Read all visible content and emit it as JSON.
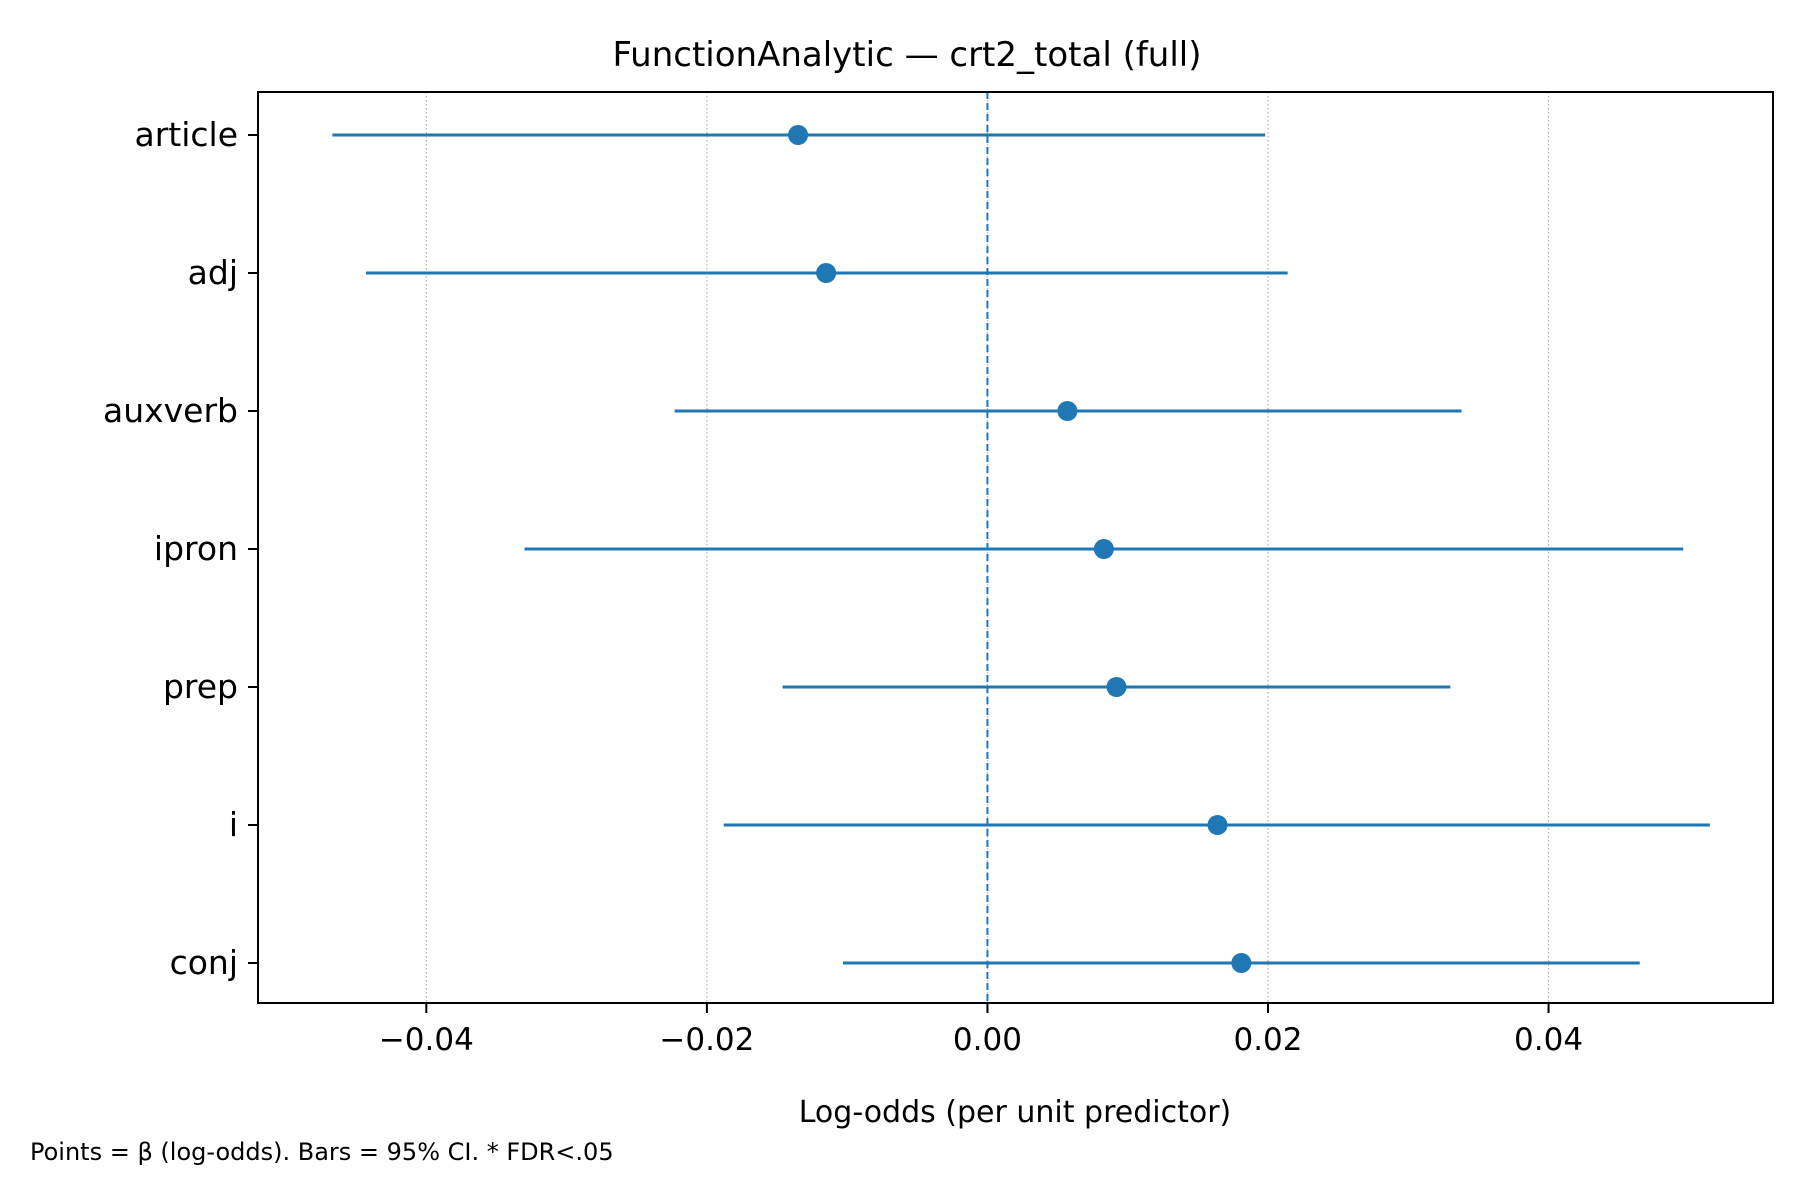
{
  "chart_data": {
    "type": "forest",
    "title": "FunctionAnalytic — crt2_total (full)",
    "xlabel": "Log-odds (per unit predictor)",
    "ylabel": "",
    "footnote": "Points = β (log-odds). Bars = 95% CI. * FDR<.05",
    "xlim": [
      -0.052,
      0.056
    ],
    "xticks": [
      -0.04,
      -0.02,
      0.0,
      0.02,
      0.04
    ],
    "xtick_labels": [
      "−0.04",
      "−0.02",
      "0.00",
      "0.02",
      "0.04"
    ],
    "reference_line_x": 0,
    "grid": "x-major-dotted",
    "color": "#1f77b4",
    "rows": [
      {
        "label": "article",
        "beta": -0.0135,
        "ci_low": -0.0467,
        "ci_high": 0.0198
      },
      {
        "label": "adj",
        "beta": -0.0115,
        "ci_low": -0.0443,
        "ci_high": 0.0214
      },
      {
        "label": "auxverb",
        "beta": 0.0057,
        "ci_low": -0.0223,
        "ci_high": 0.0338
      },
      {
        "label": "ipron",
        "beta": 0.0083,
        "ci_low": -0.033,
        "ci_high": 0.0496
      },
      {
        "label": "prep",
        "beta": 0.0092,
        "ci_low": -0.0146,
        "ci_high": 0.033
      },
      {
        "label": "i",
        "beta": 0.0164,
        "ci_low": -0.0188,
        "ci_high": 0.0515
      },
      {
        "label": "conj",
        "beta": 0.0181,
        "ci_low": -0.0103,
        "ci_high": 0.0465
      }
    ]
  }
}
